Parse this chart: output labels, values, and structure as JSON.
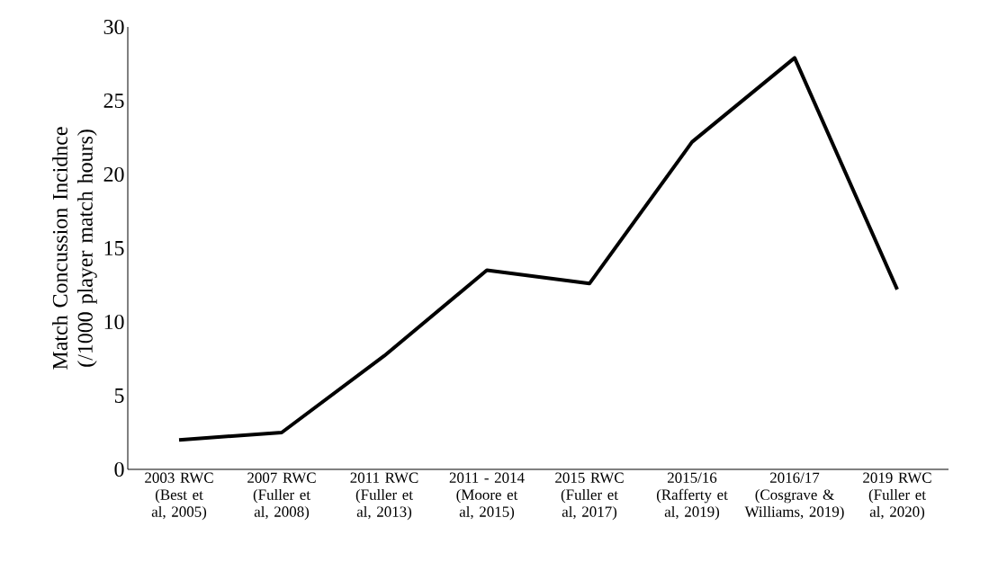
{
  "chart_data": {
    "type": "line",
    "ylabel": "Match Concussion Incidnce (/1000 player match hours)",
    "categories": [
      "2003 RWC (Best et al, 2005)",
      "2007 RWC (Fuller et al, 2008)",
      "2011 RWC (Fuller et al, 2013)",
      "2011 - 2014 (Moore et al, 2015)",
      "2015 RWC (Fuller et al, 2017)",
      "2015/16 (Rafferty et al, 2019)",
      "2016/17 (Cosgrave & Williams, 2019)",
      "2019 RWC (Fuller et al, 2020)"
    ],
    "series": [
      {
        "color": "#000000",
        "values": [
          2.0,
          2.5,
          7.7,
          13.5,
          12.6,
          22.2,
          27.9,
          12.2
        ]
      }
    ],
    "ylim": [
      0,
      30
    ],
    "yticks": [
      0,
      5,
      10,
      15,
      20,
      25,
      30
    ],
    "marker": "none",
    "line_style": "solid"
  }
}
